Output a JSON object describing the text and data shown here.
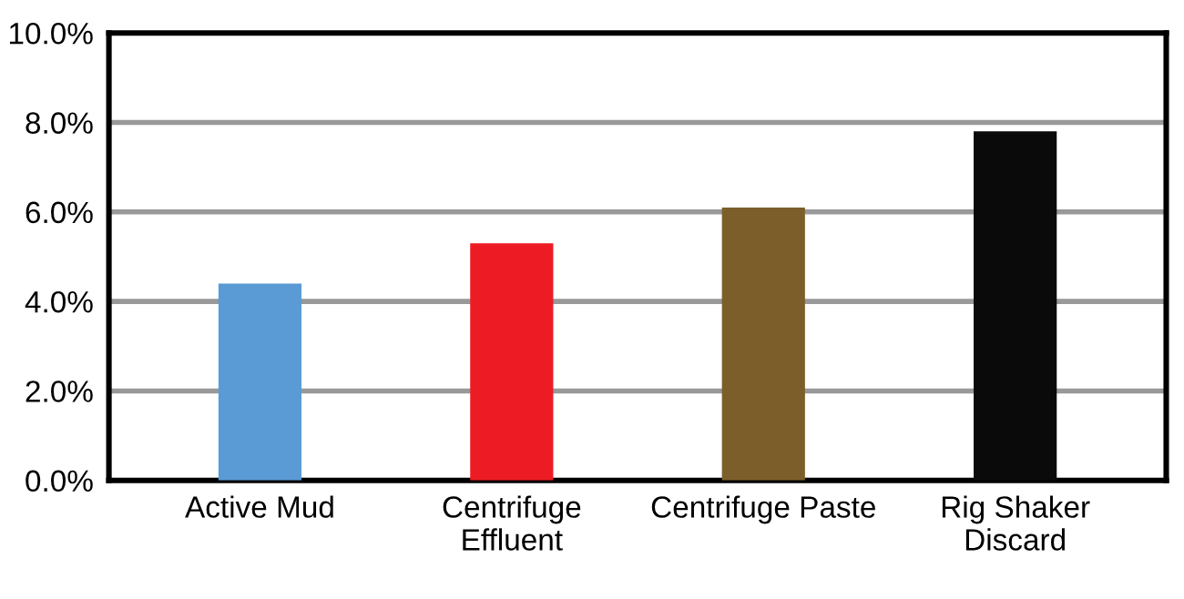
{
  "chart_data": {
    "type": "bar",
    "categories": [
      "Active Mud",
      "Centrifuge\nEffluent",
      "Centrifuge Paste",
      "Rig Shaker\nDiscard"
    ],
    "values": [
      4.4,
      5.3,
      6.1,
      7.8
    ],
    "colors": [
      "#5b9bd5",
      "#ed1c24",
      "#7b5e2a",
      "#0a0a0a"
    ],
    "ylim": [
      0,
      10
    ],
    "yticks": [
      {
        "value": 0,
        "label": "0.0%"
      },
      {
        "value": 2,
        "label": "2.0%"
      },
      {
        "value": 4,
        "label": "4.0%"
      },
      {
        "value": 6,
        "label": "6.0%"
      },
      {
        "value": 8,
        "label": "8.0%"
      },
      {
        "value": 10,
        "label": "10.0%"
      }
    ],
    "grid": "y",
    "legend": false
  }
}
